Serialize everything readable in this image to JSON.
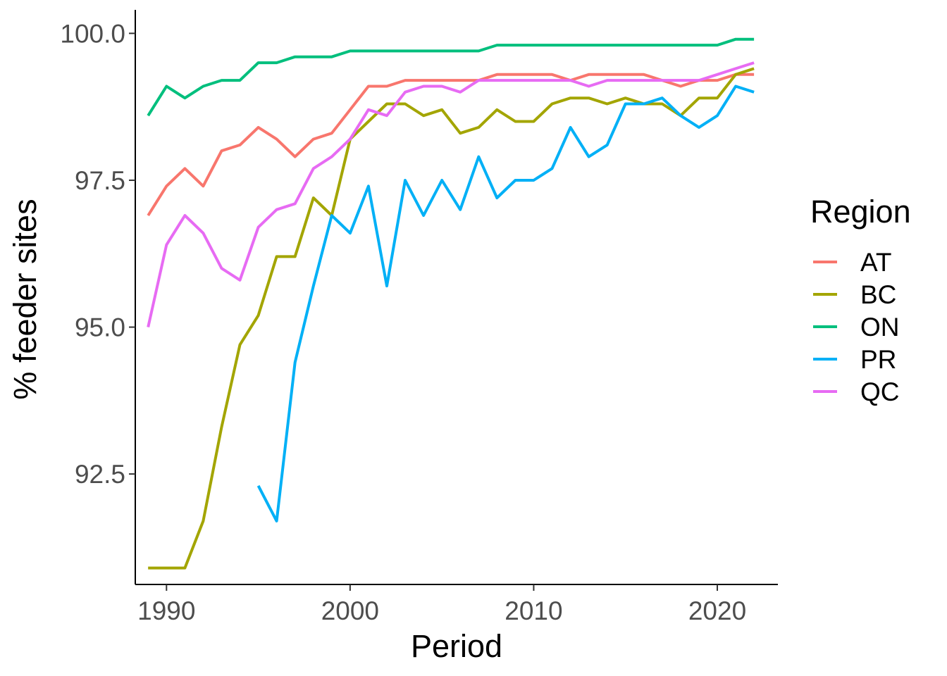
{
  "chart_data": {
    "type": "line",
    "xlabel": "Period",
    "ylabel": "% feeder sites",
    "xlim": [
      1988.3,
      2023.3
    ],
    "ylim": [
      90.62,
      100.4
    ],
    "x_ticks": [
      1990,
      2000,
      2010,
      2020
    ],
    "x_tick_labels": [
      "1990",
      "2000",
      "2010",
      "2020"
    ],
    "y_ticks": [
      92.5,
      95.0,
      97.5,
      100.0
    ],
    "y_tick_labels": [
      "92.5",
      "95.0",
      "97.5",
      "100.0"
    ],
    "grid": false,
    "legend": {
      "title": "Region",
      "position": "right"
    },
    "series": [
      {
        "name": "AT",
        "color": "#F8766D",
        "x": [
          1989,
          1990,
          1991,
          1992,
          1993,
          1994,
          1995,
          1996,
          1997,
          1998,
          1999,
          2000,
          2001,
          2002,
          2003,
          2004,
          2005,
          2006,
          2007,
          2008,
          2009,
          2010,
          2011,
          2012,
          2013,
          2014,
          2015,
          2016,
          2017,
          2018,
          2019,
          2020,
          2021,
          2022
        ],
        "values": [
          96.9,
          97.4,
          97.7,
          97.4,
          98.0,
          98.1,
          98.4,
          98.2,
          97.9,
          98.2,
          98.3,
          98.7,
          99.1,
          99.1,
          99.2,
          99.2,
          99.2,
          99.2,
          99.2,
          99.3,
          99.3,
          99.3,
          99.3,
          99.2,
          99.3,
          99.3,
          99.3,
          99.3,
          99.2,
          99.1,
          99.2,
          99.2,
          99.3,
          99.3
        ]
      },
      {
        "name": "BC",
        "color": "#A3A500",
        "x": [
          1989,
          1990,
          1991,
          1992,
          1993,
          1994,
          1995,
          1996,
          1997,
          1998,
          1999,
          2000,
          2001,
          2002,
          2003,
          2004,
          2005,
          2006,
          2007,
          2008,
          2009,
          2010,
          2011,
          2012,
          2013,
          2014,
          2015,
          2016,
          2017,
          2018,
          2019,
          2020,
          2021,
          2022
        ],
        "values": [
          90.9,
          90.9,
          90.9,
          91.7,
          93.3,
          94.7,
          95.2,
          96.2,
          96.2,
          97.2,
          96.9,
          98.2,
          98.5,
          98.8,
          98.8,
          98.6,
          98.7,
          98.3,
          98.4,
          98.7,
          98.5,
          98.5,
          98.8,
          98.9,
          98.9,
          98.8,
          98.9,
          98.8,
          98.8,
          98.6,
          98.9,
          98.9,
          99.3,
          99.4
        ]
      },
      {
        "name": "ON",
        "color": "#00BF7D",
        "x": [
          1989,
          1990,
          1991,
          1992,
          1993,
          1994,
          1995,
          1996,
          1997,
          1998,
          1999,
          2000,
          2001,
          2002,
          2003,
          2004,
          2005,
          2006,
          2007,
          2008,
          2009,
          2010,
          2011,
          2012,
          2013,
          2014,
          2015,
          2016,
          2017,
          2018,
          2019,
          2020,
          2021,
          2022
        ],
        "values": [
          98.6,
          99.1,
          98.9,
          99.1,
          99.2,
          99.2,
          99.5,
          99.5,
          99.6,
          99.6,
          99.6,
          99.7,
          99.7,
          99.7,
          99.7,
          99.7,
          99.7,
          99.7,
          99.7,
          99.8,
          99.8,
          99.8,
          99.8,
          99.8,
          99.8,
          99.8,
          99.8,
          99.8,
          99.8,
          99.8,
          99.8,
          99.8,
          99.9,
          99.9
        ]
      },
      {
        "name": "PR",
        "color": "#00B0F6",
        "x": [
          1995,
          1996,
          1997,
          1998,
          1999,
          2000,
          2001,
          2002,
          2003,
          2004,
          2005,
          2006,
          2007,
          2008,
          2009,
          2010,
          2011,
          2012,
          2013,
          2014,
          2015,
          2016,
          2017,
          2018,
          2019,
          2020,
          2021,
          2022
        ],
        "values": [
          92.3,
          91.7,
          94.4,
          95.7,
          96.9,
          96.6,
          97.4,
          95.7,
          97.5,
          96.9,
          97.5,
          97.0,
          97.9,
          97.2,
          97.5,
          97.5,
          97.7,
          98.4,
          97.9,
          98.1,
          98.8,
          98.8,
          98.9,
          98.6,
          98.4,
          98.6,
          99.1,
          99.0
        ]
      },
      {
        "name": "QC",
        "color": "#E76BF3",
        "x": [
          1989,
          1990,
          1991,
          1992,
          1993,
          1994,
          1995,
          1996,
          1997,
          1998,
          1999,
          2000,
          2001,
          2002,
          2003,
          2004,
          2005,
          2006,
          2007,
          2008,
          2009,
          2010,
          2011,
          2012,
          2013,
          2014,
          2015,
          2016,
          2017,
          2018,
          2019,
          2020,
          2021,
          2022
        ],
        "values": [
          95.0,
          96.4,
          96.9,
          96.6,
          96.0,
          95.8,
          96.7,
          97.0,
          97.1,
          97.7,
          97.9,
          98.2,
          98.7,
          98.6,
          99.0,
          99.1,
          99.1,
          99.0,
          99.2,
          99.2,
          99.2,
          99.2,
          99.2,
          99.2,
          99.1,
          99.2,
          99.2,
          99.2,
          99.2,
          99.2,
          99.2,
          99.3,
          99.4,
          99.5
        ]
      }
    ]
  }
}
